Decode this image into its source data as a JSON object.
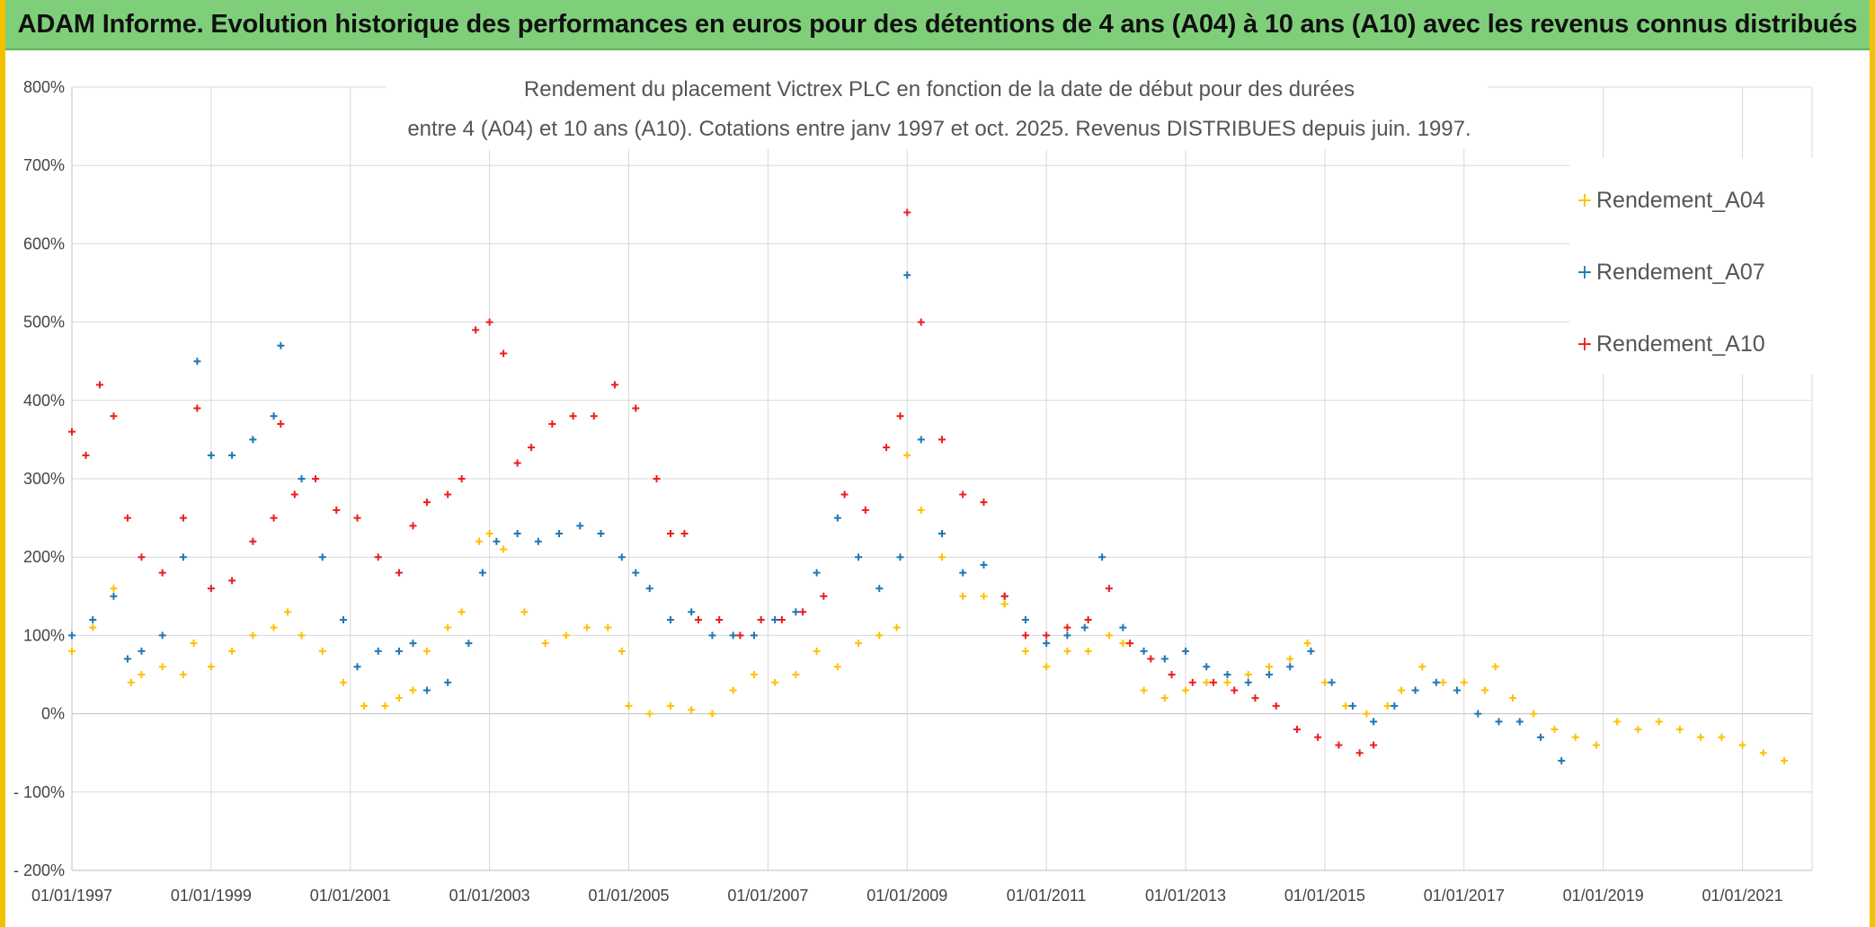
{
  "banner": {
    "title": "ADAM Informe. Evolution historique des performances en euros pour des détentions de 4 ans (A04) à 10 ans (A10) avec les revenus connus distribués"
  },
  "colors": {
    "banner_bg": "#7fcf7a",
    "frame": "#f2c200",
    "A04": "#ffc000",
    "A07": "#1f77b4",
    "A10": "#ee1c1c",
    "grid": "#d9d9d9"
  },
  "chart_data": {
    "type": "scatter",
    "title_lines": [
      "Rendement du placement Victrex PLC en fonction de la date de début pour des durées",
      "entre 4 (A04) et 10 ans (A10). Cotations entre janv 1997 et oct. 2025. Revenus DISTRIBUES depuis juin. 1997."
    ],
    "marker": "+",
    "xlim": [
      1997.0,
      2022.0
    ],
    "ylim": [
      -200,
      800
    ],
    "x_ticks": [
      1997,
      1999,
      2001,
      2003,
      2005,
      2007,
      2009,
      2011,
      2013,
      2015,
      2017,
      2019,
      2021
    ],
    "x_tick_labels": [
      "01/01/1997",
      "01/01/1999",
      "01/01/2001",
      "01/01/2003",
      "01/01/2005",
      "01/01/2007",
      "01/01/2009",
      "01/01/2011",
      "01/01/2013",
      "01/01/2015",
      "01/01/2017",
      "01/01/2019",
      "01/01/2021"
    ],
    "y_ticks": [
      -200,
      -100,
      0,
      100,
      200,
      300,
      400,
      500,
      600,
      700,
      800
    ],
    "y_tick_labels": [
      "- 200%",
      "- 100%",
      "0%",
      "100%",
      "200%",
      "300%",
      "400%",
      "500%",
      "600%",
      "700%",
      "800%"
    ],
    "legend": [
      "Rendement_A04",
      "Rendement_A07",
      "Rendement_A10"
    ],
    "series": [
      {
        "name": "Rendement_A04",
        "x": [
          1997.0,
          1997.3,
          1997.6,
          1997.85,
          1998.0,
          1998.3,
          1998.6,
          1998.75,
          1999.0,
          1999.3,
          1999.6,
          1999.9,
          2000.1,
          2000.3,
          2000.6,
          2000.9,
          2001.2,
          2001.5,
          2001.7,
          2001.9,
          2002.1,
          2002.4,
          2002.6,
          2002.85,
          2003.0,
          2003.2,
          2003.5,
          2003.8,
          2004.1,
          2004.4,
          2004.7,
          2004.9,
          2005.0,
          2005.3,
          2005.6,
          2005.9,
          2006.2,
          2006.5,
          2006.8,
          2007.1,
          2007.4,
          2007.7,
          2008.0,
          2008.3,
          2008.6,
          2008.85,
          2009.0,
          2009.2,
          2009.5,
          2009.8,
          2010.1,
          2010.4,
          2010.7,
          2011.0,
          2011.3,
          2011.6,
          2011.9,
          2012.1,
          2012.4,
          2012.7,
          2013.0,
          2013.3,
          2013.6,
          2013.9,
          2014.2,
          2014.5,
          2014.75,
          2015.0,
          2015.3,
          2015.6,
          2015.9,
          2016.1,
          2016.4,
          2016.7,
          2017.0,
          2017.3,
          2017.45,
          2017.7,
          2018.0,
          2018.3,
          2018.6,
          2018.9,
          2019.2,
          2019.5,
          2019.8,
          2020.1,
          2020.4,
          2020.7,
          2021.0,
          2021.3,
          2021.6
        ],
        "y": [
          80,
          110,
          160,
          40,
          50,
          60,
          50,
          90,
          60,
          80,
          100,
          110,
          130,
          100,
          80,
          40,
          10,
          10,
          20,
          30,
          80,
          110,
          130,
          220,
          230,
          210,
          130,
          90,
          100,
          110,
          110,
          80,
          10,
          0,
          10,
          5,
          0,
          30,
          50,
          40,
          50,
          80,
          60,
          90,
          100,
          110,
          330,
          260,
          200,
          150,
          150,
          140,
          80,
          60,
          80,
          80,
          100,
          90,
          30,
          20,
          30,
          40,
          40,
          50,
          60,
          70,
          90,
          40,
          10,
          0,
          10,
          30,
          60,
          40,
          40,
          30,
          60,
          20,
          0,
          -20,
          -30,
          -40,
          -10,
          -20,
          -10,
          -20,
          -30,
          -30,
          -40,
          -50,
          -60
        ]
      },
      {
        "name": "Rendement_A07",
        "x": [
          1997.0,
          1997.3,
          1997.6,
          1997.8,
          1998.0,
          1998.3,
          1998.6,
          1998.8,
          1999.0,
          1999.3,
          1999.6,
          1999.9,
          2000.0,
          2000.3,
          2000.6,
          2000.9,
          2001.1,
          2001.4,
          2001.7,
          2001.9,
          2002.1,
          2002.4,
          2002.7,
          2002.9,
          2003.1,
          2003.4,
          2003.7,
          2004.0,
          2004.3,
          2004.6,
          2004.9,
          2005.1,
          2005.3,
          2005.6,
          2005.9,
          2006.2,
          2006.5,
          2006.8,
          2007.1,
          2007.4,
          2007.7,
          2008.0,
          2008.3,
          2008.6,
          2008.9,
          2009.0,
          2009.2,
          2009.5,
          2009.8,
          2010.1,
          2010.4,
          2010.7,
          2011.0,
          2011.3,
          2011.55,
          2011.8,
          2012.1,
          2012.4,
          2012.7,
          2013.0,
          2013.3,
          2013.6,
          2013.9,
          2014.2,
          2014.5,
          2014.8,
          2015.1,
          2015.4,
          2015.7,
          2016.0,
          2016.3,
          2016.6,
          2016.9,
          2017.2,
          2017.5,
          2017.8,
          2018.1,
          2018.4
        ],
        "y": [
          100,
          120,
          150,
          70,
          80,
          100,
          200,
          450,
          330,
          330,
          350,
          380,
          470,
          300,
          200,
          120,
          60,
          80,
          80,
          90,
          30,
          40,
          90,
          180,
          220,
          230,
          220,
          230,
          240,
          230,
          200,
          180,
          160,
          120,
          130,
          100,
          100,
          100,
          120,
          130,
          180,
          250,
          200,
          160,
          200,
          560,
          350,
          230,
          180,
          190,
          150,
          120,
          90,
          100,
          110,
          200,
          110,
          80,
          70,
          80,
          60,
          50,
          40,
          50,
          60,
          80,
          40,
          10,
          -10,
          10,
          30,
          40,
          30,
          0,
          -10,
          -10,
          -30,
          -60
        ]
      },
      {
        "name": "Rendement_A10",
        "x": [
          1997.0,
          1997.2,
          1997.4,
          1997.6,
          1997.8,
          1998.0,
          1998.3,
          1998.6,
          1998.8,
          1999.0,
          1999.3,
          1999.6,
          1999.9,
          2000.0,
          2000.2,
          2000.5,
          2000.8,
          2001.1,
          2001.4,
          2001.7,
          2001.9,
          2002.1,
          2002.4,
          2002.6,
          2002.8,
          2003.0,
          2003.2,
          2003.4,
          2003.6,
          2003.9,
          2004.2,
          2004.5,
          2004.8,
          2005.1,
          2005.4,
          2005.6,
          2005.8,
          2006.0,
          2006.3,
          2006.6,
          2006.9,
          2007.2,
          2007.5,
          2007.8,
          2008.1,
          2008.4,
          2008.7,
          2008.9,
          2009.0,
          2009.2,
          2009.5,
          2009.8,
          2010.1,
          2010.4,
          2010.7,
          2011.0,
          2011.3,
          2011.6,
          2011.9,
          2012.2,
          2012.5,
          2012.8,
          2013.1,
          2013.4,
          2013.7,
          2014.0,
          2014.3,
          2014.6,
          2014.9,
          2015.2,
          2015.5,
          2015.7
        ],
        "y": [
          360,
          330,
          420,
          380,
          250,
          200,
          180,
          250,
          390,
          160,
          170,
          220,
          250,
          370,
          280,
          300,
          260,
          250,
          200,
          180,
          240,
          270,
          280,
          300,
          490,
          500,
          460,
          320,
          340,
          370,
          380,
          380,
          420,
          390,
          300,
          230,
          230,
          120,
          120,
          100,
          120,
          120,
          130,
          150,
          280,
          260,
          340,
          380,
          640,
          500,
          350,
          280,
          270,
          150,
          100,
          100,
          110,
          120,
          160,
          90,
          70,
          50,
          40,
          40,
          30,
          20,
          10,
          -20,
          -30,
          -40,
          -50,
          -40
        ]
      }
    ]
  }
}
